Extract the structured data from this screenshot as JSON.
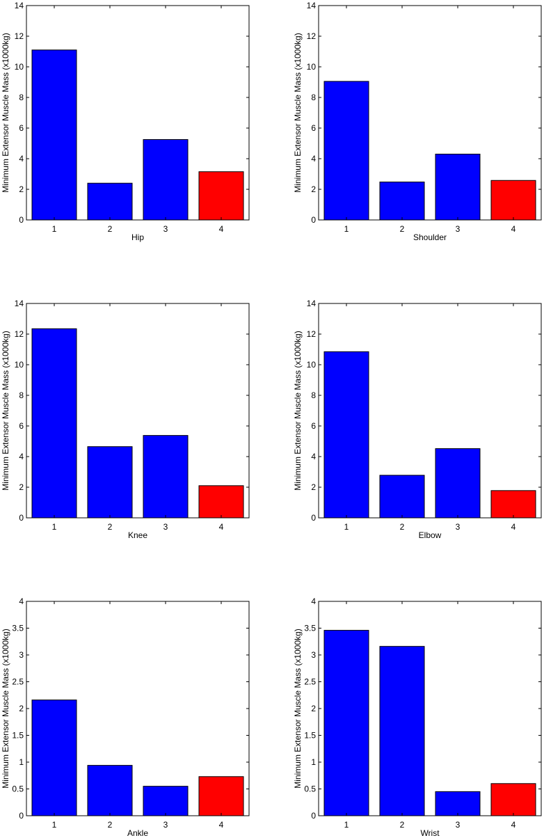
{
  "chart_data": [
    {
      "type": "bar",
      "title": "",
      "xlabel": "Hip",
      "ylabel": "Minimum Extensor Muscle Mass (x1000kg)",
      "categories": [
        "1",
        "2",
        "3",
        "4"
      ],
      "values": [
        11.1,
        2.4,
        5.25,
        3.15
      ],
      "bar_colors": [
        "#0000ff",
        "#0000ff",
        "#0000ff",
        "#ff0000"
      ],
      "ylim": [
        0,
        14
      ],
      "yticks": [
        0,
        2,
        4,
        6,
        8,
        10,
        12,
        14
      ],
      "ytick_labels": [
        "0",
        "2",
        "4",
        "6",
        "8",
        "10",
        "12",
        "14"
      ],
      "grid": false
    },
    {
      "type": "bar",
      "title": "",
      "xlabel": "Shoulder",
      "ylabel": "Minimum Extensor Muscle Mass (x1000kg)",
      "categories": [
        "1",
        "2",
        "3",
        "4"
      ],
      "values": [
        9.05,
        2.48,
        4.3,
        2.58
      ],
      "bar_colors": [
        "#0000ff",
        "#0000ff",
        "#0000ff",
        "#ff0000"
      ],
      "ylim": [
        0,
        14
      ],
      "yticks": [
        0,
        2,
        4,
        6,
        8,
        10,
        12,
        14
      ],
      "ytick_labels": [
        "0",
        "2",
        "4",
        "6",
        "8",
        "10",
        "12",
        "14"
      ],
      "grid": false
    },
    {
      "type": "bar",
      "title": "",
      "xlabel": "Knee",
      "ylabel": "Minimum Extensor Muscle Mass (x1000kg)",
      "categories": [
        "1",
        "2",
        "3",
        "4"
      ],
      "values": [
        12.35,
        4.65,
        5.38,
        2.1
      ],
      "bar_colors": [
        "#0000ff",
        "#0000ff",
        "#0000ff",
        "#ff0000"
      ],
      "ylim": [
        0,
        14
      ],
      "yticks": [
        0,
        2,
        4,
        6,
        8,
        10,
        12,
        14
      ],
      "ytick_labels": [
        "0",
        "2",
        "4",
        "6",
        "8",
        "10",
        "12",
        "14"
      ],
      "grid": false
    },
    {
      "type": "bar",
      "title": "",
      "xlabel": "Elbow",
      "ylabel": "Minimum Extensor Muscle Mass (x1000kg)",
      "categories": [
        "1",
        "2",
        "3",
        "4"
      ],
      "values": [
        10.85,
        2.78,
        4.52,
        1.78
      ],
      "bar_colors": [
        "#0000ff",
        "#0000ff",
        "#0000ff",
        "#ff0000"
      ],
      "ylim": [
        0,
        14
      ],
      "yticks": [
        0,
        2,
        4,
        6,
        8,
        10,
        12,
        14
      ],
      "ytick_labels": [
        "0",
        "2",
        "4",
        "6",
        "8",
        "10",
        "12",
        "14"
      ],
      "grid": false
    },
    {
      "type": "bar",
      "title": "",
      "xlabel": "Ankle",
      "ylabel": "Minimum Extensor Muscle Mass (x1000kg)",
      "categories": [
        "1",
        "2",
        "3",
        "4"
      ],
      "values": [
        2.16,
        0.94,
        0.55,
        0.73
      ],
      "bar_colors": [
        "#0000ff",
        "#0000ff",
        "#0000ff",
        "#ff0000"
      ],
      "ylim": [
        0,
        4
      ],
      "yticks": [
        0,
        0.5,
        1,
        1.5,
        2,
        2.5,
        3,
        3.5,
        4
      ],
      "ytick_labels": [
        "0",
        "0.5",
        "1",
        "1.5",
        "2",
        "2.5",
        "3",
        "3.5",
        "4"
      ],
      "grid": false
    },
    {
      "type": "bar",
      "title": "",
      "xlabel": "Wrist",
      "ylabel": "Minimum Extensor Muscle Mass (x1000kg)",
      "categories": [
        "1",
        "2",
        "3",
        "4"
      ],
      "values": [
        3.46,
        3.16,
        0.45,
        0.6
      ],
      "bar_colors": [
        "#0000ff",
        "#0000ff",
        "#0000ff",
        "#ff0000"
      ],
      "ylim": [
        0,
        4
      ],
      "yticks": [
        0,
        0.5,
        1,
        1.5,
        2,
        2.5,
        3,
        3.5,
        4
      ],
      "ytick_labels": [
        "0",
        "0.5",
        "1",
        "1.5",
        "2",
        "2.5",
        "3",
        "3.5",
        "4"
      ],
      "grid": false
    }
  ]
}
